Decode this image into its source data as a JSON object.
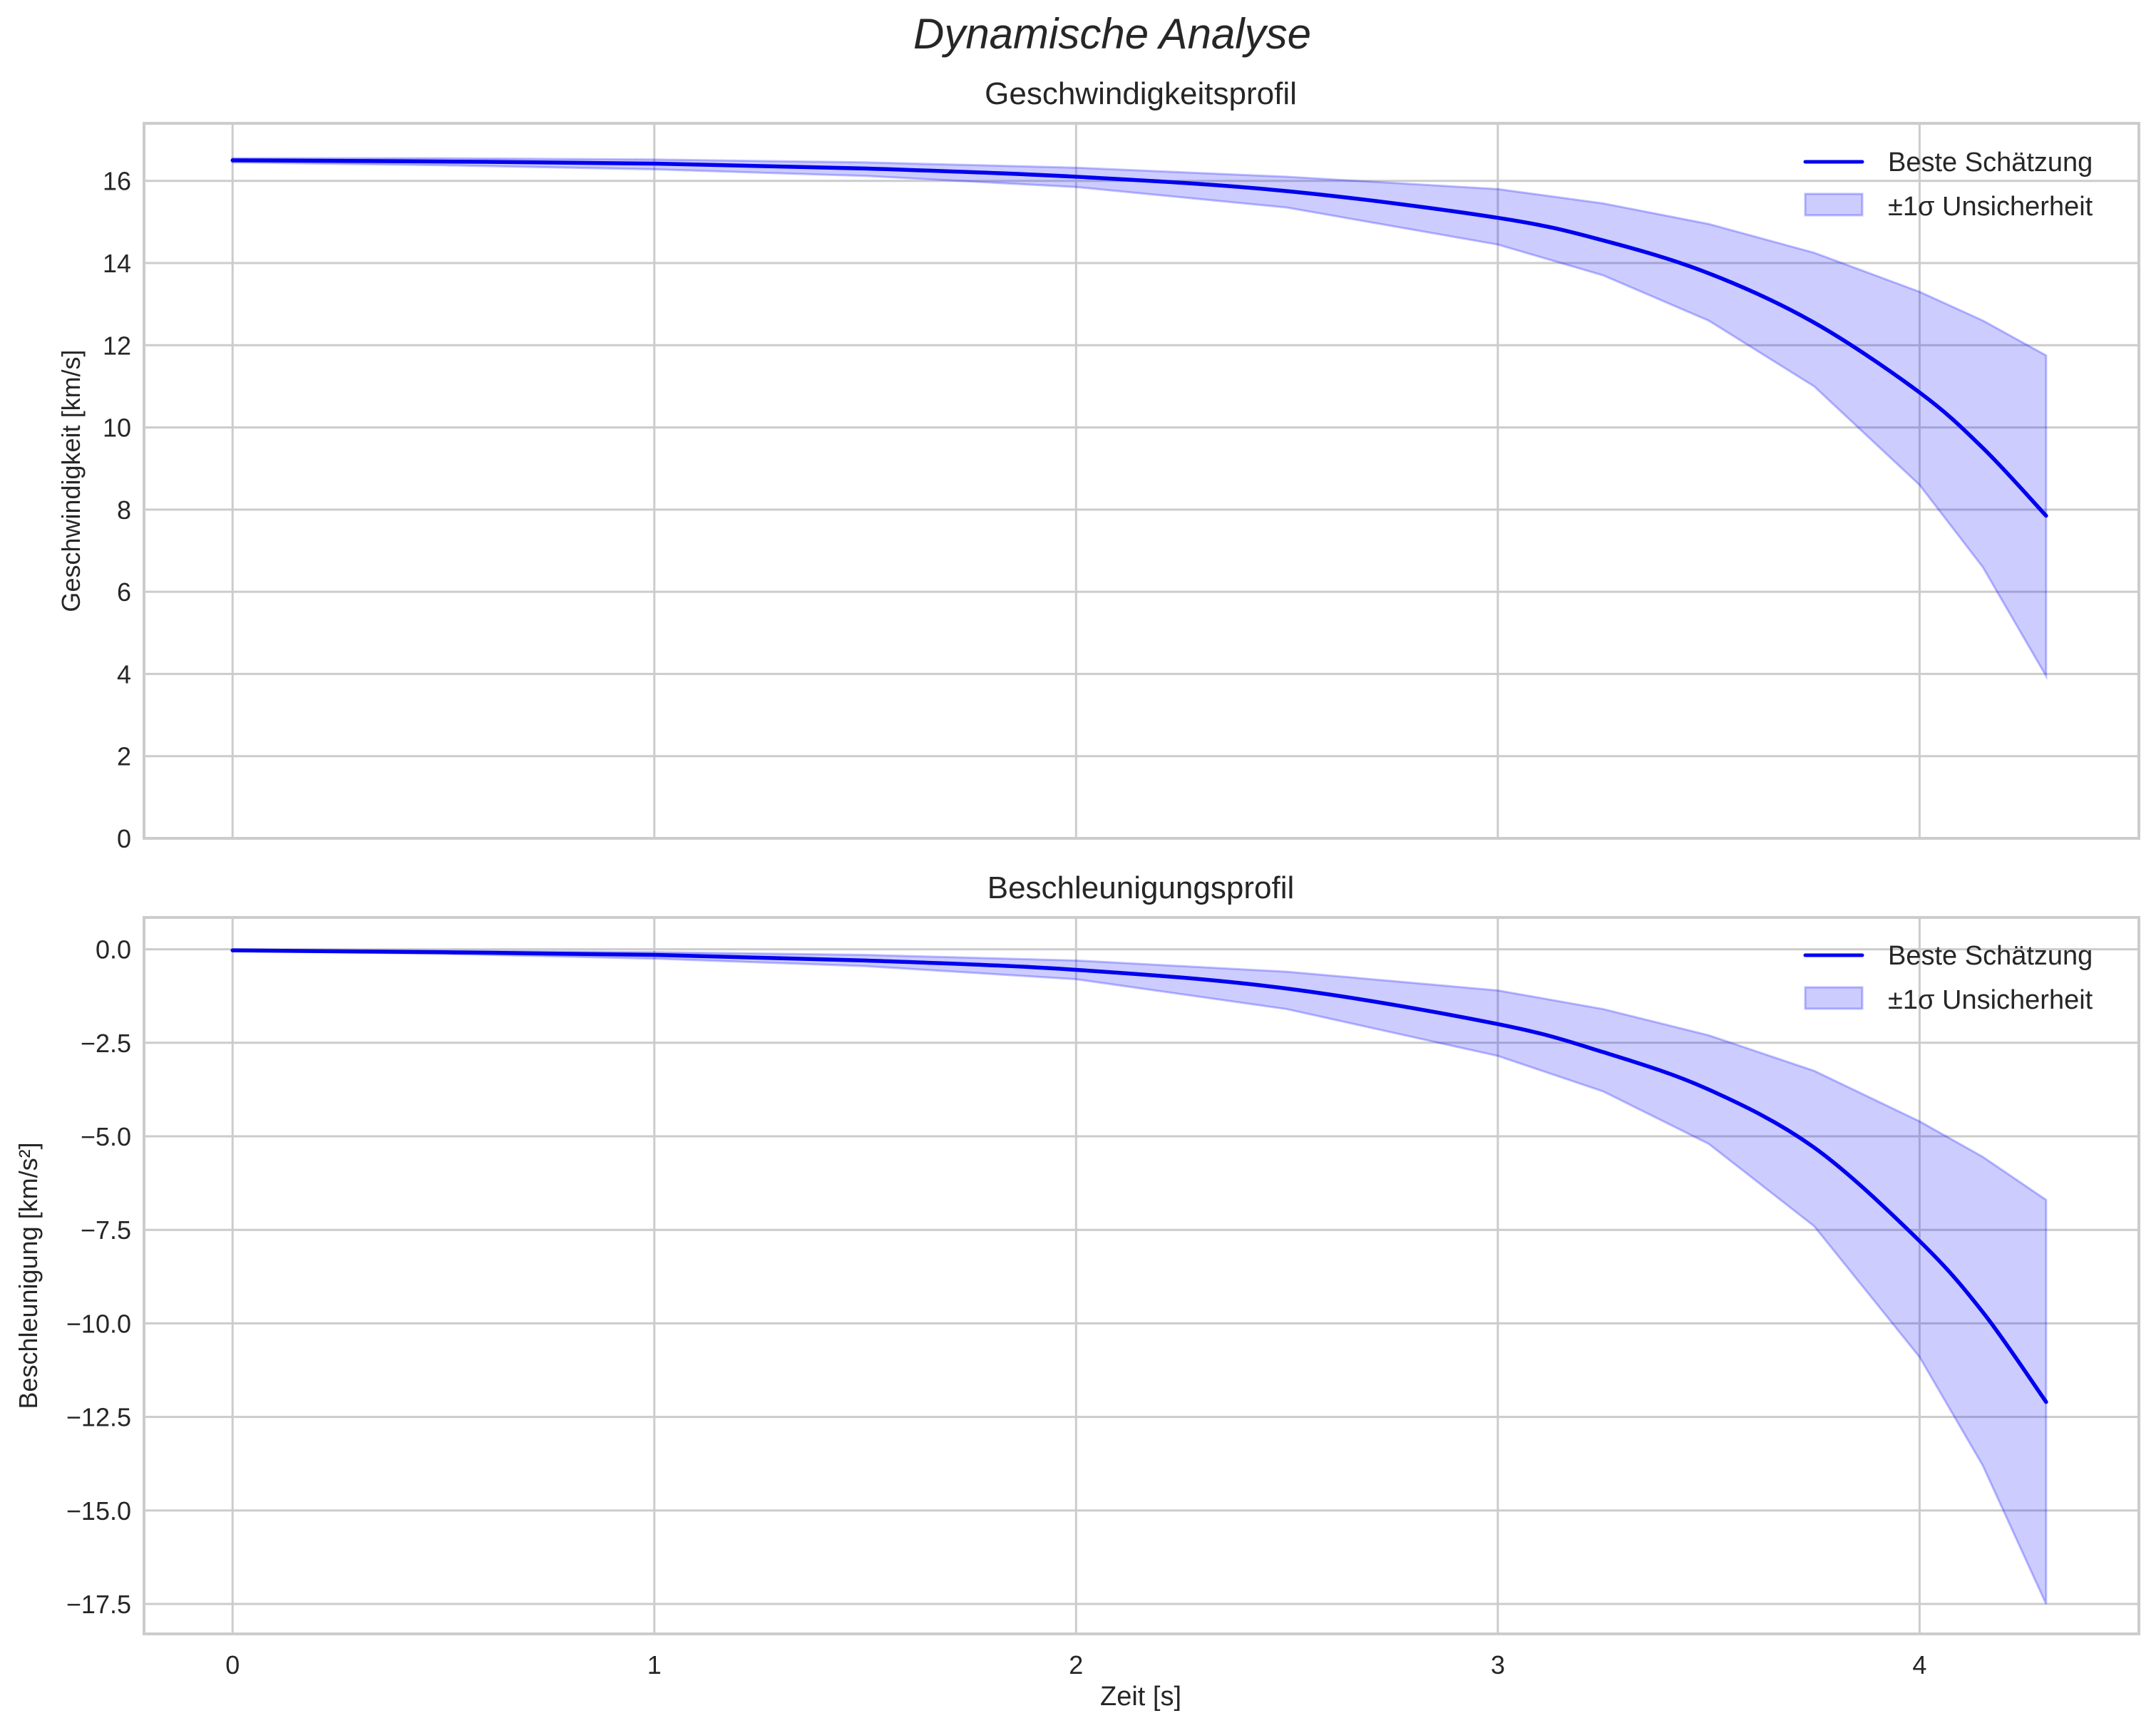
{
  "figure": {
    "suptitle": "Dynamische Analyse",
    "shared_xlabel": "Zeit [s]",
    "colors": {
      "line": "#0000ee",
      "band_fill": "#0000ff",
      "band_fill_opacity": 0.2,
      "grid": "#cccccc",
      "spine": "#cccccc",
      "text": "#262626"
    }
  },
  "legend": {
    "items": [
      {
        "label": "Beste Schätzung",
        "type": "line"
      },
      {
        "label": "±1σ Unsicherheit",
        "type": "band"
      }
    ]
  },
  "chart_data": [
    {
      "type": "line",
      "title": "Geschwindigkeitsprofil",
      "xlabel": "",
      "ylabel": "Geschwindigkeit [km/s]",
      "xlim": [
        -0.21,
        4.52
      ],
      "ylim": [
        0,
        17.4
      ],
      "xticks": [
        0,
        1,
        2,
        3,
        4
      ],
      "xtick_labels": [
        "",
        "",
        "",
        "",
        ""
      ],
      "yticks": [
        0,
        2,
        4,
        6,
        8,
        10,
        12,
        14,
        16
      ],
      "ytick_labels": [
        "0",
        "2",
        "4",
        "6",
        "8",
        "10",
        "12",
        "14",
        "16"
      ],
      "grid": true,
      "legend_position": "upper right",
      "x": [
        0,
        0.5,
        1.0,
        1.5,
        2.0,
        2.5,
        3.0,
        3.25,
        3.5,
        3.75,
        4.0,
        4.15,
        4.3
      ],
      "series": [
        {
          "name": "Beste Schätzung",
          "values": [
            16.5,
            16.47,
            16.42,
            16.3,
            16.1,
            15.75,
            15.1,
            14.55,
            13.75,
            12.55,
            10.85,
            9.5,
            7.85
          ]
        },
        {
          "name": "±1σ lower",
          "values": [
            16.45,
            16.38,
            16.28,
            16.12,
            15.85,
            15.35,
            14.45,
            13.7,
            12.6,
            11.0,
            8.6,
            6.6,
            3.95
          ]
        },
        {
          "name": "±1σ upper",
          "values": [
            16.55,
            16.55,
            16.52,
            16.45,
            16.32,
            16.1,
            15.8,
            15.45,
            14.95,
            14.25,
            13.3,
            12.6,
            11.75
          ]
        }
      ]
    },
    {
      "type": "line",
      "title": "Beschleunigungsprofil",
      "xlabel": "Zeit [s]",
      "ylabel": "Beschleunigung [km/s²]",
      "xlim": [
        -0.21,
        4.52
      ],
      "ylim": [
        -18.3,
        0.85
      ],
      "xticks": [
        0,
        1,
        2,
        3,
        4
      ],
      "xtick_labels": [
        "0",
        "1",
        "2",
        "3",
        "4"
      ],
      "yticks": [
        0.0,
        -2.5,
        -5.0,
        -7.5,
        -10.0,
        -12.5,
        -15.0,
        -17.5
      ],
      "ytick_labels": [
        "0.0",
        "−2.5",
        "−5.0",
        "−7.5",
        "−10.0",
        "−12.5",
        "−15.0",
        "−17.5"
      ],
      "grid": true,
      "legend_position": "upper right",
      "x": [
        0,
        0.5,
        1.0,
        1.5,
        2.0,
        2.5,
        3.0,
        3.25,
        3.5,
        3.75,
        4.0,
        4.15,
        4.3
      ],
      "series": [
        {
          "name": "Beste Schätzung",
          "values": [
            -0.03,
            -0.08,
            -0.15,
            -0.3,
            -0.55,
            -1.05,
            -2.0,
            -2.75,
            -3.75,
            -5.3,
            -7.8,
            -9.7,
            -12.1
          ]
        },
        {
          "name": "±1σ lower",
          "values": [
            -0.05,
            -0.12,
            -0.25,
            -0.45,
            -0.8,
            -1.6,
            -2.85,
            -3.8,
            -5.2,
            -7.4,
            -10.9,
            -13.8,
            -17.5
          ]
        },
        {
          "name": "±1σ upper",
          "values": [
            -0.01,
            -0.04,
            -0.08,
            -0.15,
            -0.3,
            -0.6,
            -1.1,
            -1.6,
            -2.3,
            -3.25,
            -4.6,
            -5.55,
            -6.7
          ]
        }
      ]
    }
  ]
}
